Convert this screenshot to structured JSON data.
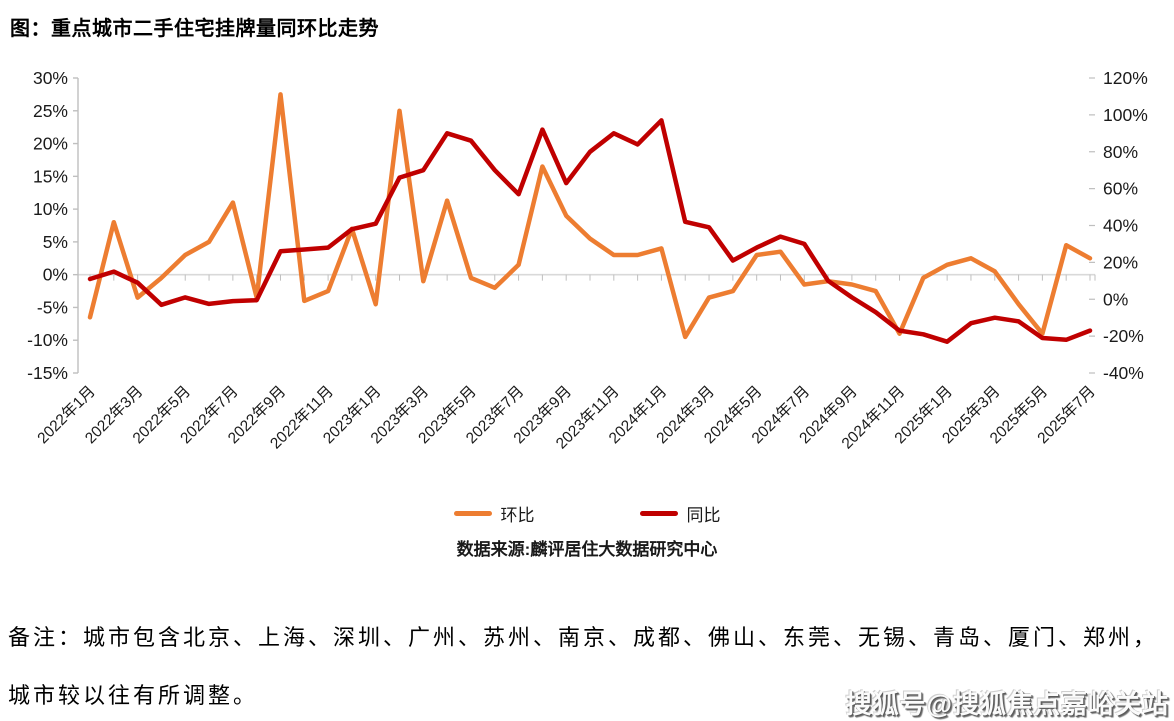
{
  "title": "图：重点城市二手住宅挂牌量同环比走势",
  "source": "数据来源:麟评居住大数据研究中心",
  "note_line1": "备注：城市包含北京、上海、深圳、广州、苏州、南京、成都、佛山、东莞、无锡、青岛、厦门、郑州，",
  "note_line2": "城市较以往有所调整。",
  "watermark": "搜狐号@搜狐焦点嘉峪关站",
  "colors": {
    "mom_line": "#ED7D31",
    "yoy_line": "#C00000",
    "gridline": "#D9D9D9",
    "axis": "#BFBFBF",
    "tick_text": "#1a1a1a"
  },
  "chart_data": {
    "type": "line",
    "title": "图：重点城市二手住宅挂牌量同环比走势",
    "categories": [
      "2022年1月",
      "2022年2月",
      "2022年3月",
      "2022年4月",
      "2022年5月",
      "2022年6月",
      "2022年7月",
      "2022年8月",
      "2022年9月",
      "2022年10月",
      "2022年11月",
      "2022年12月",
      "2023年1月",
      "2023年2月",
      "2023年3月",
      "2023年4月",
      "2023年5月",
      "2023年6月",
      "2023年7月",
      "2023年8月",
      "2023年9月",
      "2023年10月",
      "2023年11月",
      "2023年12月",
      "2024年1月",
      "2024年2月",
      "2024年3月",
      "2024年4月",
      "2024年5月",
      "2024年6月",
      "2024年7月",
      "2024年8月",
      "2024年9月",
      "2024年10月",
      "2024年11月",
      "2024年12月",
      "2025年1月",
      "2025年2月",
      "2025年3月",
      "2025年4月",
      "2025年5月",
      "2025年6月",
      "2025年7月"
    ],
    "x_tick_labels": [
      "2022年1月",
      "2022年3月",
      "2022年5月",
      "2022年7月",
      "2022年9月",
      "2022年11月",
      "2023年1月",
      "2023年3月",
      "2023年5月",
      "2023年7月",
      "2023年9月",
      "2023年11月",
      "2024年1月",
      "2024年3月",
      "2024年5月",
      "2024年7月",
      "2024年9月",
      "2024年11月",
      "2025年1月",
      "2025年3月",
      "2025年5月",
      "2025年7月"
    ],
    "series": [
      {
        "name": "环比",
        "axis": "left",
        "color": "#ED7D31",
        "values": [
          -6.5,
          8,
          -3.5,
          -0.5,
          3,
          5,
          11,
          -3.5,
          27.5,
          -4,
          -2.5,
          7,
          -4.5,
          25,
          -1,
          11.3,
          -0.5,
          -2,
          1.5,
          16.5,
          9,
          5.5,
          3,
          3,
          4,
          -9.5,
          -3.5,
          -2.5,
          3,
          3.5,
          -1.5,
          -1,
          -1.5,
          -2.5,
          -9,
          -0.5,
          1.5,
          2.5,
          0.5,
          -4.5,
          -9,
          4.5,
          2.5
        ]
      },
      {
        "name": "同比",
        "axis": "right",
        "color": "#C00000",
        "values": [
          11,
          15,
          9,
          -3,
          1,
          -2.5,
          -1,
          -0.5,
          26,
          27,
          28,
          38,
          41,
          66,
          70,
          90,
          86,
          70,
          57,
          92,
          63,
          80,
          90,
          84,
          97,
          42,
          39,
          21,
          28,
          34,
          30,
          10,
          1,
          -7,
          -17,
          -19,
          -23,
          -13,
          -10,
          -12,
          -21,
          -22,
          -17
        ]
      }
    ],
    "left_axis": {
      "min": -15,
      "max": 30,
      "tick_labels": [
        "30%",
        "25%",
        "20%",
        "15%",
        "10%",
        "5%",
        "0%",
        "-5%",
        "-10%",
        "-15%"
      ]
    },
    "right_axis": {
      "min": -40,
      "max": 120,
      "tick_labels": [
        "120%",
        "100%",
        "80%",
        "60%",
        "40%",
        "20%",
        "0%",
        "-20%",
        "-40%"
      ]
    },
    "grid": "single horizontal line at left-axis 0%",
    "legend_position": "bottom-center"
  }
}
